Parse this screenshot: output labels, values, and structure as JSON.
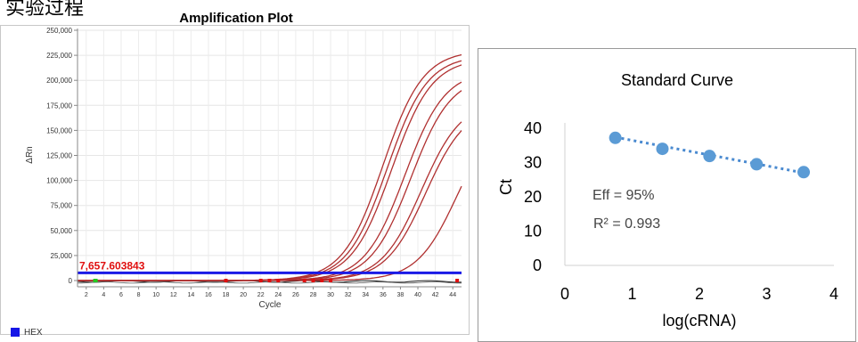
{
  "header_fragment": "实验过程",
  "chart_data": [
    {
      "type": "line",
      "title": "Amplification Plot",
      "xlabel": "Cycle",
      "ylabel": "ΔRn",
      "xlim": [
        1,
        45
      ],
      "ylim": [
        0,
        250000
      ],
      "x_ticks": [
        2,
        4,
        6,
        8,
        10,
        12,
        14,
        16,
        18,
        20,
        22,
        24,
        26,
        28,
        30,
        32,
        34,
        36,
        38,
        40,
        42,
        44
      ],
      "y_ticks": [
        0,
        25000,
        50000,
        75000,
        100000,
        125000,
        150000,
        175000,
        200000,
        225000,
        250000
      ],
      "y_tick_labels": [
        "0",
        "25,000",
        "50,000",
        "75,000",
        "100,000",
        "125,000",
        "150,000",
        "175,000",
        "200,000",
        "225,000",
        "250,000"
      ],
      "threshold": {
        "value": 7657.603843,
        "label": "7,657.603843",
        "color": "#1a1ae6"
      },
      "curve_color": "#b03030",
      "curves": [
        {
          "midpoint": 36.0,
          "plateau": 230000
        },
        {
          "midpoint": 36.5,
          "plateau": 225000
        },
        {
          "midpoint": 37.0,
          "plateau": 222000
        },
        {
          "midpoint": 38.5,
          "plateau": 210000
        },
        {
          "midpoint": 39.2,
          "plateau": 205000
        },
        {
          "midpoint": 40.4,
          "plateau": 180000
        },
        {
          "midpoint": 40.9,
          "plateau": 175000
        },
        {
          "midpoint": 44.5,
          "plateau": 170000
        }
      ],
      "legend": [
        {
          "name": "HEX",
          "color": "#1515e6"
        }
      ],
      "grid": true
    },
    {
      "type": "scatter",
      "title": "Standard Curve",
      "xlabel": "log(cRNA)",
      "ylabel": "Ct",
      "xlim": [
        0,
        4
      ],
      "ylim": [
        0,
        40
      ],
      "x_ticks": [
        0,
        1,
        2,
        3,
        4
      ],
      "y_ticks": [
        0,
        10,
        20,
        30,
        40
      ],
      "points": [
        {
          "x": 0.75,
          "y": 37.2
        },
        {
          "x": 1.45,
          "y": 34.0
        },
        {
          "x": 2.15,
          "y": 31.9
        },
        {
          "x": 2.85,
          "y": 29.5
        },
        {
          "x": 3.55,
          "y": 27.2
        }
      ],
      "trendline": {
        "x": [
          0.75,
          3.55
        ],
        "y": [
          37.4,
          27.0
        ],
        "style": "dotted"
      },
      "annotations": [
        "Eff = 95%",
        "R² = 0.993"
      ],
      "color": "#5b9bd5",
      "grid": false
    }
  ]
}
